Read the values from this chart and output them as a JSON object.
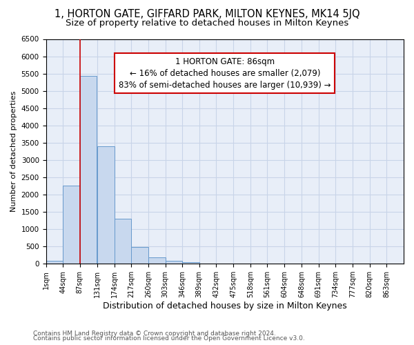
{
  "title": "1, HORTON GATE, GIFFARD PARK, MILTON KEYNES, MK14 5JQ",
  "subtitle": "Size of property relative to detached houses in Milton Keynes",
  "xlabel": "Distribution of detached houses by size in Milton Keynes",
  "ylabel": "Number of detached properties",
  "footer1": "Contains HM Land Registry data © Crown copyright and database right 2024.",
  "footer2": "Contains public sector information licensed under the Open Government Licence v3.0.",
  "bar_values": [
    75,
    2250,
    5430,
    3400,
    1300,
    490,
    190,
    90,
    50,
    10,
    5,
    3,
    2,
    1,
    1,
    0,
    0,
    0,
    0,
    0
  ],
  "bin_edges": [
    1,
    44,
    87,
    131,
    174,
    217,
    260,
    303,
    346,
    389,
    432,
    475,
    518,
    561,
    604,
    648,
    691,
    734,
    777,
    820,
    863
  ],
  "tick_labels": [
    "1sqm",
    "44sqm",
    "87sqm",
    "131sqm",
    "174sqm",
    "217sqm",
    "260sqm",
    "303sqm",
    "346sqm",
    "389sqm",
    "432sqm",
    "475sqm",
    "518sqm",
    "561sqm",
    "604sqm",
    "648sqm",
    "691sqm",
    "734sqm",
    "777sqm",
    "820sqm",
    "863sqm"
  ],
  "bar_color": "#c8d8ee",
  "bar_edgecolor": "#6699cc",
  "property_line_x": 87,
  "annotation_text": "1 HORTON GATE: 86sqm\n← 16% of detached houses are smaller (2,079)\n83% of semi-detached houses are larger (10,939) →",
  "vline_color": "#cc0000",
  "ylim": [
    0,
    6500
  ],
  "yticks": [
    0,
    500,
    1000,
    1500,
    2000,
    2500,
    3000,
    3500,
    4000,
    4500,
    5000,
    5500,
    6000,
    6500
  ],
  "grid_color": "#c8d4e8",
  "bg_color": "#e8eef8",
  "title_fontsize": 10.5,
  "subtitle_fontsize": 9.5,
  "xlabel_fontsize": 9,
  "ylabel_fontsize": 8,
  "tick_fontsize": 7,
  "footer_fontsize": 6.5
}
